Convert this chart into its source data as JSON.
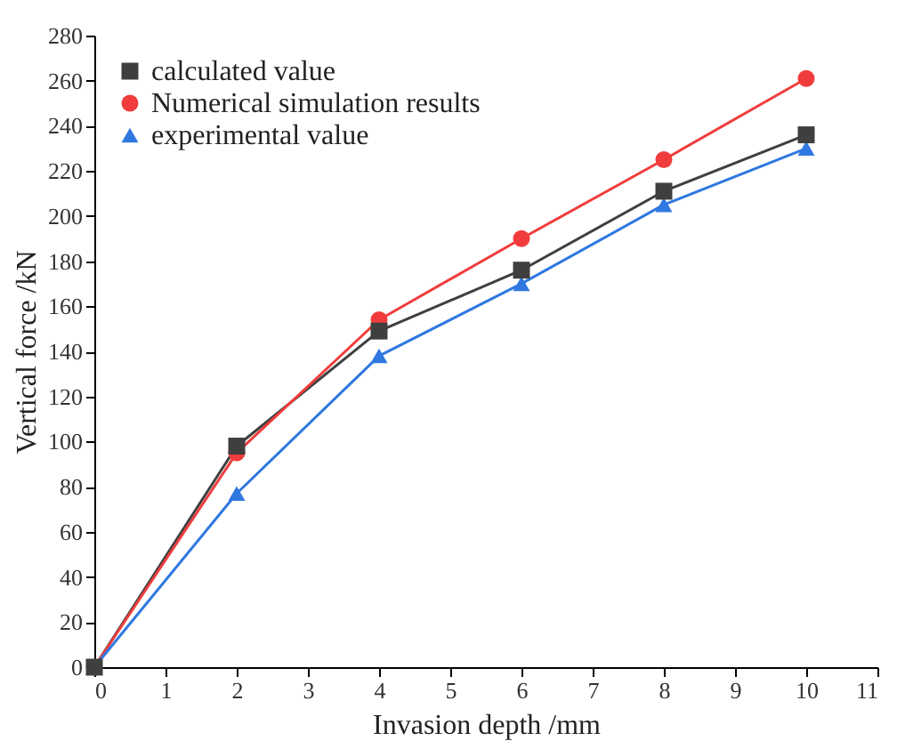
{
  "chart_data": {
    "type": "line",
    "xlabel": "Invasion depth /mm",
    "ylabel": "Vertical force /kN",
    "x": [
      0,
      2,
      4,
      6,
      8,
      10
    ],
    "series": [
      {
        "name": "calculated value",
        "color": "#3f3f3f",
        "marker": "square",
        "values": [
          0,
          98,
          149,
          176,
          211,
          236
        ]
      },
      {
        "name": "Numerical simulation results",
        "color": "#f03c3c",
        "marker": "circle",
        "values": [
          0,
          95,
          154,
          190,
          225,
          261
        ]
      },
      {
        "name": "experimental value",
        "color": "#2f78e0",
        "marker": "triangle",
        "values": [
          0,
          77,
          138,
          170,
          205,
          230
        ]
      }
    ],
    "xlim": [
      0,
      11
    ],
    "xticks": [
      0,
      1,
      2,
      3,
      4,
      5,
      6,
      7,
      8,
      9,
      10,
      11
    ],
    "ylim": [
      0,
      280
    ],
    "yticks": [
      0,
      20,
      40,
      60,
      80,
      100,
      120,
      140,
      160,
      180,
      200,
      220,
      240,
      260,
      280
    ],
    "grid": false,
    "legend": "top left",
    "line_style": "solid"
  }
}
